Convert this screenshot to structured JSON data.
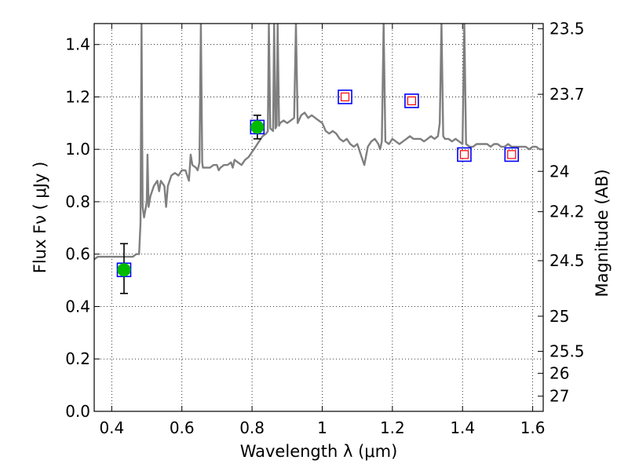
{
  "chart_data": {
    "type": "line",
    "xlabel": "Wavelength  λ (μm)",
    "ylabel": "Flux  Fν  ( μJy )",
    "y2label": "Magnitude (AB)",
    "xlim": [
      0.35,
      1.63
    ],
    "ylim": [
      0.0,
      1.48
    ],
    "grid": true,
    "x_ticks": [
      {
        "value": 0.4,
        "label": "0.4"
      },
      {
        "value": 0.6,
        "label": "0.6"
      },
      {
        "value": 0.8,
        "label": "0.8"
      },
      {
        "value": 1.0,
        "label": "1"
      },
      {
        "value": 1.2,
        "label": "1.2"
      },
      {
        "value": 1.4,
        "label": "1.4"
      },
      {
        "value": 1.6,
        "label": "1.6"
      }
    ],
    "y_ticks": [
      {
        "value": 0.0,
        "label": "0.0"
      },
      {
        "value": 0.2,
        "label": "0.2"
      },
      {
        "value": 0.4,
        "label": "0.4"
      },
      {
        "value": 0.6,
        "label": "0.6"
      },
      {
        "value": 0.8,
        "label": "0.8"
      },
      {
        "value": 1.0,
        "label": "1.0"
      },
      {
        "value": 1.2,
        "label": "1.2"
      },
      {
        "value": 1.4,
        "label": "1.4"
      }
    ],
    "y2_ticks": [
      {
        "flux": 1.46,
        "label": "23.5"
      },
      {
        "flux": 1.21,
        "label": "23.7"
      },
      {
        "flux": 0.916,
        "label": "24"
      },
      {
        "flux": 0.762,
        "label": "24.2"
      },
      {
        "flux": 0.575,
        "label": "24.5"
      },
      {
        "flux": 0.363,
        "label": "25"
      },
      {
        "flux": 0.229,
        "label": "25.5"
      },
      {
        "flux": 0.145,
        "label": "26"
      },
      {
        "flux": 0.058,
        "label": "27"
      }
    ],
    "model_spectrum": {
      "color": "#7f7f7f",
      "points": [
        [
          0.35,
          0.58
        ],
        [
          0.36,
          0.59
        ],
        [
          0.37,
          0.59
        ],
        [
          0.38,
          0.59
        ],
        [
          0.39,
          0.59
        ],
        [
          0.4,
          0.59
        ],
        [
          0.41,
          0.59
        ],
        [
          0.42,
          0.59
        ],
        [
          0.43,
          0.59
        ],
        [
          0.44,
          0.59
        ],
        [
          0.45,
          0.59
        ],
        [
          0.46,
          0.59
        ],
        [
          0.47,
          0.6
        ],
        [
          0.478,
          0.6
        ],
        [
          0.482,
          0.72
        ],
        [
          0.485,
          1.48
        ],
        [
          0.488,
          0.78
        ],
        [
          0.492,
          0.74
        ],
        [
          0.5,
          0.8
        ],
        [
          0.502,
          0.98
        ],
        [
          0.505,
          0.78
        ],
        [
          0.51,
          0.82
        ],
        [
          0.52,
          0.86
        ],
        [
          0.53,
          0.88
        ],
        [
          0.535,
          0.84
        ],
        [
          0.54,
          0.88
        ],
        [
          0.55,
          0.86
        ],
        [
          0.555,
          0.78
        ],
        [
          0.56,
          0.86
        ],
        [
          0.57,
          0.9
        ],
        [
          0.58,
          0.91
        ],
        [
          0.59,
          0.9
        ],
        [
          0.6,
          0.92
        ],
        [
          0.61,
          0.92
        ],
        [
          0.62,
          0.88
        ],
        [
          0.625,
          0.98
        ],
        [
          0.63,
          0.94
        ],
        [
          0.64,
          0.93
        ],
        [
          0.645,
          0.92
        ],
        [
          0.65,
          0.95
        ],
        [
          0.654,
          1.48
        ],
        [
          0.658,
          0.95
        ],
        [
          0.66,
          0.93
        ],
        [
          0.67,
          0.93
        ],
        [
          0.68,
          0.93
        ],
        [
          0.69,
          0.94
        ],
        [
          0.7,
          0.94
        ],
        [
          0.705,
          0.92
        ],
        [
          0.71,
          0.93
        ],
        [
          0.72,
          0.94
        ],
        [
          0.73,
          0.94
        ],
        [
          0.74,
          0.95
        ],
        [
          0.745,
          0.93
        ],
        [
          0.75,
          0.96
        ],
        [
          0.76,
          0.95
        ],
        [
          0.77,
          0.94
        ],
        [
          0.78,
          0.96
        ],
        [
          0.79,
          0.97
        ],
        [
          0.8,
          0.99
        ],
        [
          0.81,
          1.01
        ],
        [
          0.815,
          1.02
        ],
        [
          0.82,
          1.03
        ],
        [
          0.83,
          1.05
        ],
        [
          0.84,
          1.06
        ],
        [
          0.845,
          1.07
        ],
        [
          0.848,
          1.48
        ],
        [
          0.852,
          1.08
        ],
        [
          0.86,
          1.07
        ],
        [
          0.863,
          1.48
        ],
        [
          0.867,
          1.08
        ],
        [
          0.87,
          1.09
        ],
        [
          0.873,
          1.48
        ],
        [
          0.877,
          1.09
        ],
        [
          0.88,
          1.1
        ],
        [
          0.89,
          1.11
        ],
        [
          0.9,
          1.1
        ],
        [
          0.91,
          1.11
        ],
        [
          0.92,
          1.12
        ],
        [
          0.925,
          1.48
        ],
        [
          0.93,
          1.1
        ],
        [
          0.94,
          1.13
        ],
        [
          0.95,
          1.14
        ],
        [
          0.96,
          1.12
        ],
        [
          0.97,
          1.13
        ],
        [
          0.98,
          1.12
        ],
        [
          0.99,
          1.11
        ],
        [
          1.0,
          1.1
        ],
        [
          1.01,
          1.07
        ],
        [
          1.02,
          1.06
        ],
        [
          1.03,
          1.07
        ],
        [
          1.04,
          1.06
        ],
        [
          1.05,
          1.04
        ],
        [
          1.06,
          1.03
        ],
        [
          1.07,
          1.04
        ],
        [
          1.08,
          1.02
        ],
        [
          1.09,
          1.01
        ],
        [
          1.1,
          1.02
        ],
        [
          1.11,
          0.98
        ],
        [
          1.12,
          0.94
        ],
        [
          1.13,
          1.01
        ],
        [
          1.14,
          1.03
        ],
        [
          1.15,
          1.04
        ],
        [
          1.16,
          1.02
        ],
        [
          1.165,
          1.0
        ],
        [
          1.17,
          1.03
        ],
        [
          1.175,
          1.48
        ],
        [
          1.18,
          1.03
        ],
        [
          1.19,
          1.02
        ],
        [
          1.2,
          1.04
        ],
        [
          1.21,
          1.03
        ],
        [
          1.22,
          1.02
        ],
        [
          1.23,
          1.03
        ],
        [
          1.24,
          1.04
        ],
        [
          1.25,
          1.05
        ],
        [
          1.26,
          1.04
        ],
        [
          1.27,
          1.04
        ],
        [
          1.28,
          1.04
        ],
        [
          1.29,
          1.03
        ],
        [
          1.3,
          1.04
        ],
        [
          1.31,
          1.05
        ],
        [
          1.32,
          1.04
        ],
        [
          1.33,
          1.05
        ],
        [
          1.335,
          1.1
        ],
        [
          1.34,
          1.48
        ],
        [
          1.345,
          1.05
        ],
        [
          1.35,
          1.04
        ],
        [
          1.36,
          1.04
        ],
        [
          1.37,
          1.03
        ],
        [
          1.38,
          1.04
        ],
        [
          1.39,
          1.03
        ],
        [
          1.4,
          1.02
        ],
        [
          1.405,
          1.48
        ],
        [
          1.41,
          1.02
        ],
        [
          1.42,
          1.01
        ],
        [
          1.43,
          1.01
        ],
        [
          1.44,
          1.02
        ],
        [
          1.45,
          1.02
        ],
        [
          1.46,
          1.02
        ],
        [
          1.47,
          1.02
        ],
        [
          1.48,
          1.01
        ],
        [
          1.49,
          1.02
        ],
        [
          1.5,
          1.02
        ],
        [
          1.51,
          1.01
        ],
        [
          1.52,
          1.01
        ],
        [
          1.53,
          1.02
        ],
        [
          1.54,
          1.01
        ],
        [
          1.55,
          1.01
        ],
        [
          1.56,
          1.01
        ],
        [
          1.57,
          1.01
        ],
        [
          1.58,
          1.01
        ],
        [
          1.59,
          1.0
        ],
        [
          1.6,
          1.01
        ],
        [
          1.61,
          1.01
        ],
        [
          1.62,
          1.0
        ],
        [
          1.63,
          1.0
        ]
      ]
    },
    "model_photometry": {
      "marker": "open-square",
      "color": "#0000ff",
      "points": [
        [
          0.435,
          0.54
        ],
        [
          0.815,
          1.085
        ],
        [
          1.065,
          1.2
        ],
        [
          1.255,
          1.185
        ],
        [
          1.405,
          0.98
        ],
        [
          1.54,
          0.98
        ]
      ]
    },
    "upper_limits": {
      "marker": "small-open-square",
      "color": "#ff0000",
      "points": [
        [
          1.065,
          1.2
        ],
        [
          1.255,
          1.185
        ],
        [
          1.405,
          0.98
        ],
        [
          1.54,
          0.98
        ]
      ]
    },
    "observed": {
      "marker": "filled-circle",
      "color": "#00bb00",
      "points": [
        {
          "x": 0.435,
          "y": 0.54,
          "yerr_low": 0.09,
          "yerr_high": 0.1
        },
        {
          "x": 0.815,
          "y": 1.085,
          "yerr_low": 0.045,
          "yerr_high": 0.045
        }
      ]
    }
  }
}
